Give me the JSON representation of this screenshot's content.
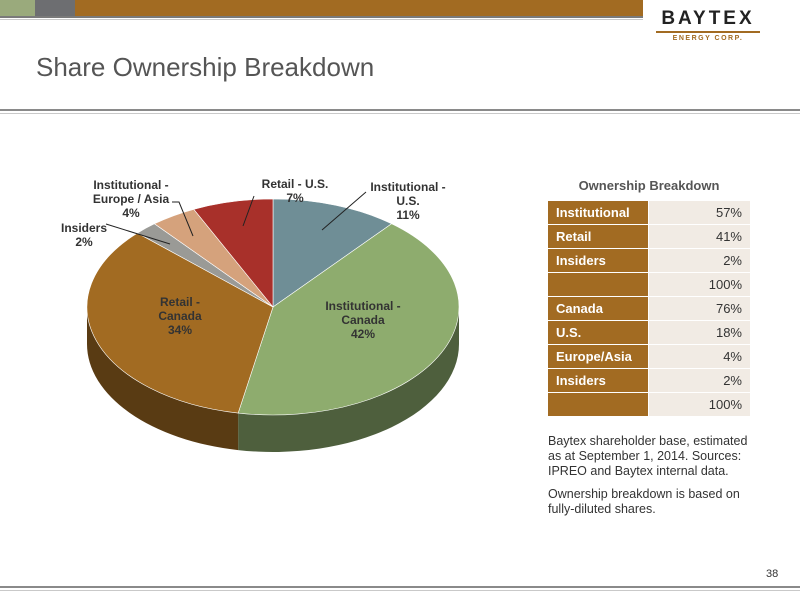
{
  "header": {
    "title": "Share Ownership Breakdown"
  },
  "logo": {
    "name": "BAYTEX",
    "sub": "ENERGY CORP."
  },
  "chart_data": {
    "type": "pie",
    "title": "",
    "slices": [
      {
        "label": "Institutional - U.S.",
        "value": 11,
        "pct_label": "11%",
        "color": "#6f8e96"
      },
      {
        "label": "Institutional - Canada",
        "value": 42,
        "pct_label": "42%",
        "color": "#8eac6e"
      },
      {
        "label": "Retail - Canada",
        "value": 34,
        "pct_label": "34%",
        "color": "#a26b22"
      },
      {
        "label": "Insiders",
        "value": 2,
        "pct_label": "2%",
        "color": "#9a9a96"
      },
      {
        "label": "Institutional - Europe / Asia",
        "value": 4,
        "pct_label": "4%",
        "color": "#d5a27c"
      },
      {
        "label": "Retail - U.S.",
        "value": 7,
        "pct_label": "7%",
        "color": "#a8302a"
      }
    ],
    "labels_text": {
      "ius": [
        "Institutional -",
        "U.S.",
        "11%"
      ],
      "ica": [
        "Institutional -",
        "Canada",
        "42%"
      ],
      "rca": [
        "Retail -",
        "Canada",
        "34%"
      ],
      "ins": [
        "Insiders",
        "2%"
      ],
      "ieu": [
        "Institutional -",
        "Europe / Asia",
        "4%"
      ],
      "rus": [
        "Retail - U.S.",
        "7%"
      ]
    }
  },
  "table": {
    "title": "Ownership Breakdown",
    "rows": [
      {
        "label": "Institutional",
        "value": "57%"
      },
      {
        "label": "Retail",
        "value": "41%"
      },
      {
        "label": "Insiders",
        "value": "2%"
      },
      {
        "label": "",
        "value": "100%"
      },
      {
        "label": "Canada",
        "value": "76%"
      },
      {
        "label": "U.S.",
        "value": "18%"
      },
      {
        "label": "Europe/Asia",
        "value": "4%"
      },
      {
        "label": "Insiders",
        "value": "2%"
      },
      {
        "label": "",
        "value": "100%"
      }
    ]
  },
  "notes": {
    "note1": "Baytex shareholder base, estimated as at September 1, 2014. Sources: IPREO and Baytex internal data.",
    "note2": "Ownership breakdown is based on fully-diluted shares."
  },
  "page_number": "38"
}
